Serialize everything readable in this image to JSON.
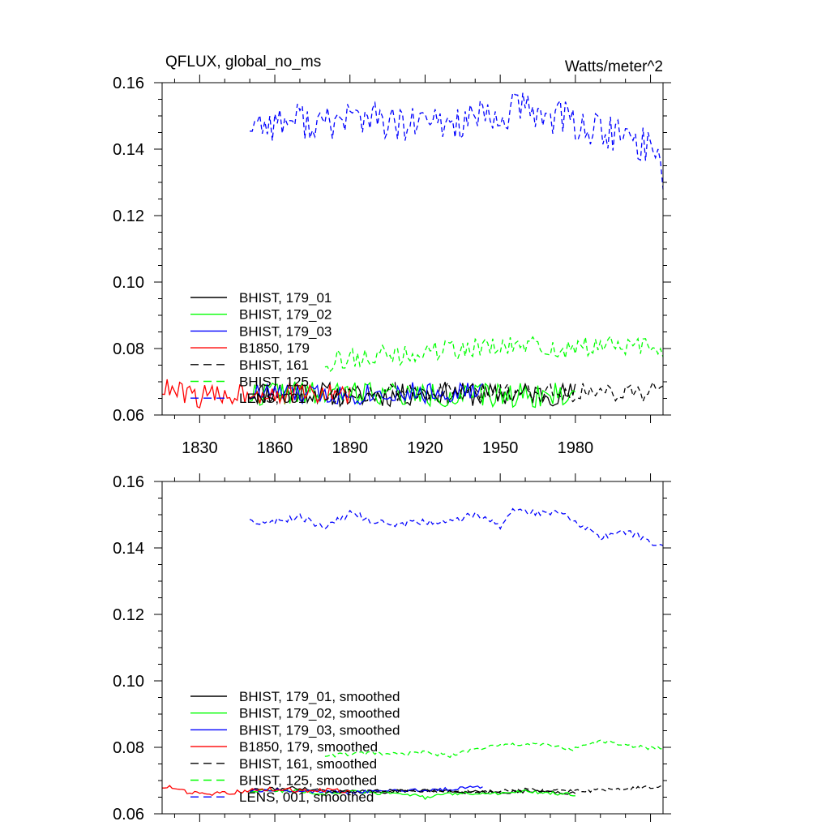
{
  "chart_data": [
    {
      "type": "line",
      "title": "QFLUX, global_no_ms",
      "units": "Watts/meter^2",
      "xlim": [
        1815,
        2015
      ],
      "ylim": [
        0.06,
        0.16
      ],
      "xticks": [
        1830,
        1860,
        1890,
        1920,
        1950,
        1980
      ],
      "xtick_labels": [
        "1830",
        "1860",
        "1890",
        "1920",
        "1950",
        "1980"
      ],
      "yticks": [
        0.06,
        0.08,
        0.1,
        0.12,
        0.14,
        0.16
      ],
      "ytick_labels": [
        "0.06",
        "0.08",
        "0.10",
        "0.12",
        "0.14",
        "0.16"
      ],
      "legend_position": "lower-left",
      "series": [
        {
          "name": "BHIST, 179_01",
          "color": "#000000",
          "dash": "solid",
          "x_start": 1850,
          "x_end": 1980,
          "anchors": [
            [
              1850,
              0.0665
            ],
            [
              1860,
              0.0668
            ],
            [
              1870,
              0.0672
            ],
            [
              1880,
              0.0666
            ],
            [
              1890,
              0.0655
            ],
            [
              1900,
              0.066
            ],
            [
              1910,
              0.0658
            ],
            [
              1920,
              0.0668
            ],
            [
              1930,
              0.0665
            ],
            [
              1940,
              0.066
            ],
            [
              1950,
              0.066
            ],
            [
              1960,
              0.0665
            ],
            [
              1970,
              0.0662
            ],
            [
              1980,
              0.0665
            ]
          ],
          "noise": 0.0035,
          "seed": 11
        },
        {
          "name": "BHIST, 179_02",
          "color": "#00ff00",
          "dash": "solid",
          "x_start": 1850,
          "x_end": 1980,
          "anchors": [
            [
              1850,
              0.066
            ],
            [
              1860,
              0.067
            ],
            [
              1870,
              0.0665
            ],
            [
              1880,
              0.0658
            ],
            [
              1890,
              0.0665
            ],
            [
              1900,
              0.0672
            ],
            [
              1910,
              0.066
            ],
            [
              1920,
              0.066
            ],
            [
              1930,
              0.0658
            ],
            [
              1940,
              0.0655
            ],
            [
              1950,
              0.066
            ],
            [
              1960,
              0.0663
            ],
            [
              1970,
              0.0658
            ],
            [
              1980,
              0.0662
            ]
          ],
          "noise": 0.0038,
          "seed": 22
        },
        {
          "name": "BHIST, 179_03",
          "color": "#0000ff",
          "dash": "solid",
          "x_start": 1850,
          "x_end": 1943,
          "anchors": [
            [
              1850,
              0.0665
            ],
            [
              1860,
              0.0668
            ],
            [
              1870,
              0.066
            ],
            [
              1880,
              0.0662
            ],
            [
              1890,
              0.066
            ],
            [
              1900,
              0.0668
            ],
            [
              1910,
              0.0668
            ],
            [
              1920,
              0.0665
            ],
            [
              1930,
              0.067
            ],
            [
              1943,
              0.067
            ]
          ],
          "noise": 0.0032,
          "seed": 33
        },
        {
          "name": "B1850, 179",
          "color": "#ff0000",
          "dash": "solid",
          "x_start": 1815,
          "x_end": 1890,
          "anchors": [
            [
              1815,
              0.068
            ],
            [
              1820,
              0.067
            ],
            [
              1830,
              0.0655
            ],
            [
              1840,
              0.066
            ],
            [
              1850,
              0.067
            ],
            [
              1860,
              0.0668
            ],
            [
              1870,
              0.0662
            ],
            [
              1880,
              0.0665
            ],
            [
              1890,
              0.066
            ]
          ],
          "noise": 0.0035,
          "seed": 44
        },
        {
          "name": "BHIST, 161",
          "color": "#000000",
          "dash": "dashed",
          "x_start": 1880,
          "x_end": 2015,
          "anchors": [
            [
              1880,
              0.066
            ],
            [
              1900,
              0.0665
            ],
            [
              1920,
              0.067
            ],
            [
              1940,
              0.0665
            ],
            [
              1960,
              0.0672
            ],
            [
              1980,
              0.0668
            ],
            [
              2000,
              0.0672
            ],
            [
              2015,
              0.067
            ]
          ],
          "noise": 0.003,
          "seed": 55
        },
        {
          "name": "BHIST, 125",
          "color": "#00ff00",
          "dash": "dashed",
          "x_start": 1880,
          "x_end": 2015,
          "anchors": [
            [
              1880,
              0.076
            ],
            [
              1890,
              0.077
            ],
            [
              1900,
              0.078
            ],
            [
              1910,
              0.0775
            ],
            [
              1920,
              0.079
            ],
            [
              1930,
              0.0795
            ],
            [
              1940,
              0.0805
            ],
            [
              1950,
              0.08
            ],
            [
              1960,
              0.081
            ],
            [
              1970,
              0.08
            ],
            [
              1980,
              0.0795
            ],
            [
              1990,
              0.0815
            ],
            [
              2000,
              0.0805
            ],
            [
              2015,
              0.08
            ]
          ],
          "noise": 0.0032,
          "seed": 66
        },
        {
          "name": "LENS, 001",
          "color": "#0000ff",
          "dash": "dashed",
          "x_start": 1850,
          "x_end": 2015,
          "anchors": [
            [
              1850,
              0.148
            ],
            [
              1860,
              0.148
            ],
            [
              1870,
              0.149
            ],
            [
              1880,
              0.147
            ],
            [
              1890,
              0.15
            ],
            [
              1900,
              0.149
            ],
            [
              1910,
              0.1465
            ],
            [
              1920,
              0.148
            ],
            [
              1930,
              0.1475
            ],
            [
              1940,
              0.1495
            ],
            [
              1950,
              0.1475
            ],
            [
              1955,
              0.153
            ],
            [
              1965,
              0.1505
            ],
            [
              1975,
              0.1495
            ],
            [
              1985,
              0.146
            ],
            [
              1995,
              0.1445
            ],
            [
              2005,
              0.142
            ],
            [
              2012,
              0.14
            ],
            [
              2015,
              0.133
            ]
          ],
          "noise": 0.0055,
          "seed": 77
        }
      ]
    },
    {
      "type": "line",
      "title": "",
      "xlim": [
        1815,
        2015
      ],
      "ylim": [
        0.06,
        0.16
      ],
      "xticks": [
        1830,
        1860,
        1890,
        1920,
        1950,
        1980
      ],
      "yticks": [
        0.06,
        0.08,
        0.1,
        0.12,
        0.14,
        0.16
      ],
      "ytick_labels": [
        "0.06",
        "0.08",
        "0.10",
        "0.12",
        "0.14",
        "0.16"
      ],
      "legend_position": "lower-left",
      "series": [
        {
          "name": "BHIST, 179_01, smoothed",
          "color": "#000000",
          "dash": "solid",
          "x_start": 1850,
          "x_end": 1980,
          "anchors": [
            [
              1850,
              0.0672
            ],
            [
              1860,
              0.0675
            ],
            [
              1870,
              0.0678
            ],
            [
              1880,
              0.067
            ],
            [
              1890,
              0.0668
            ],
            [
              1900,
              0.0665
            ],
            [
              1910,
              0.0668
            ],
            [
              1920,
              0.0672
            ],
            [
              1930,
              0.0668
            ],
            [
              1940,
              0.0665
            ],
            [
              1950,
              0.0665
            ],
            [
              1960,
              0.0668
            ],
            [
              1970,
              0.0665
            ],
            [
              1980,
              0.0662
            ]
          ],
          "noise": 0.0005,
          "seed": 111
        },
        {
          "name": "BHIST, 179_02, smoothed",
          "color": "#00ff00",
          "dash": "solid",
          "x_start": 1850,
          "x_end": 1980,
          "anchors": [
            [
              1850,
              0.0668
            ],
            [
              1860,
              0.067
            ],
            [
              1870,
              0.0668
            ],
            [
              1880,
              0.066
            ],
            [
              1890,
              0.0668
            ],
            [
              1900,
              0.0662
            ],
            [
              1910,
              0.0665
            ],
            [
              1920,
              0.0648
            ],
            [
              1930,
              0.066
            ],
            [
              1940,
              0.0662
            ],
            [
              1950,
              0.066
            ],
            [
              1960,
              0.0668
            ],
            [
              1970,
              0.0662
            ],
            [
              1980,
              0.0658
            ]
          ],
          "noise": 0.0005,
          "seed": 122
        },
        {
          "name": "BHIST, 179_03, smoothed",
          "color": "#0000ff",
          "dash": "solid",
          "x_start": 1850,
          "x_end": 1943,
          "anchors": [
            [
              1850,
              0.067
            ],
            [
              1860,
              0.0672
            ],
            [
              1870,
              0.0668
            ],
            [
              1880,
              0.0668
            ],
            [
              1890,
              0.0665
            ],
            [
              1900,
              0.0668
            ],
            [
              1910,
              0.0672
            ],
            [
              1920,
              0.067
            ],
            [
              1930,
              0.0675
            ],
            [
              1943,
              0.0682
            ]
          ],
          "noise": 0.0005,
          "seed": 133
        },
        {
          "name": "B1850, 179, smoothed",
          "color": "#ff0000",
          "dash": "solid",
          "x_start": 1815,
          "x_end": 1890,
          "anchors": [
            [
              1815,
              0.068
            ],
            [
              1820,
              0.0678
            ],
            [
              1825,
              0.0665
            ],
            [
              1830,
              0.066
            ],
            [
              1840,
              0.0662
            ],
            [
              1850,
              0.067
            ],
            [
              1860,
              0.0675
            ],
            [
              1870,
              0.067
            ],
            [
              1880,
              0.0672
            ],
            [
              1890,
              0.0668
            ]
          ],
          "noise": 0.0006,
          "seed": 144
        },
        {
          "name": "BHIST, 161, smoothed",
          "color": "#000000",
          "dash": "dashed",
          "x_start": 1880,
          "x_end": 2015,
          "anchors": [
            [
              1880,
              0.0665
            ],
            [
              1900,
              0.067
            ],
            [
              1920,
              0.0668
            ],
            [
              1940,
              0.0665
            ],
            [
              1960,
              0.0672
            ],
            [
              1980,
              0.0668
            ],
            [
              2000,
              0.0675
            ],
            [
              2015,
              0.0682
            ]
          ],
          "noise": 0.0005,
          "seed": 155
        },
        {
          "name": "BHIST, 125, smoothed",
          "color": "#00ff00",
          "dash": "dashed",
          "x_start": 1880,
          "x_end": 2015,
          "anchors": [
            [
              1880,
              0.0775
            ],
            [
              1890,
              0.078
            ],
            [
              1900,
              0.0782
            ],
            [
              1910,
              0.0778
            ],
            [
              1920,
              0.0785
            ],
            [
              1930,
              0.0775
            ],
            [
              1940,
              0.0795
            ],
            [
              1950,
              0.0805
            ],
            [
              1960,
              0.081
            ],
            [
              1970,
              0.0805
            ],
            [
              1980,
              0.0795
            ],
            [
              1990,
              0.082
            ],
            [
              2000,
              0.0805
            ],
            [
              2015,
              0.0795
            ]
          ],
          "noise": 0.0006,
          "seed": 166
        },
        {
          "name": "LENS, 001, smoothed",
          "color": "#0000ff",
          "dash": "dashed",
          "x_start": 1850,
          "x_end": 2015,
          "anchors": [
            [
              1850,
              0.149
            ],
            [
              1855,
              0.147
            ],
            [
              1860,
              0.148
            ],
            [
              1870,
              0.1495
            ],
            [
              1880,
              0.146
            ],
            [
              1890,
              0.1505
            ],
            [
              1900,
              0.148
            ],
            [
              1910,
              0.147
            ],
            [
              1920,
              0.148
            ],
            [
              1930,
              0.148
            ],
            [
              1940,
              0.15
            ],
            [
              1950,
              0.1465
            ],
            [
              1955,
              0.152
            ],
            [
              1965,
              0.1505
            ],
            [
              1975,
              0.1505
            ],
            [
              1985,
              0.1455
            ],
            [
              1990,
              0.143
            ],
            [
              2000,
              0.145
            ],
            [
              2010,
              0.142
            ],
            [
              2015,
              0.14
            ]
          ],
          "noise": 0.001,
          "seed": 177
        }
      ]
    }
  ]
}
